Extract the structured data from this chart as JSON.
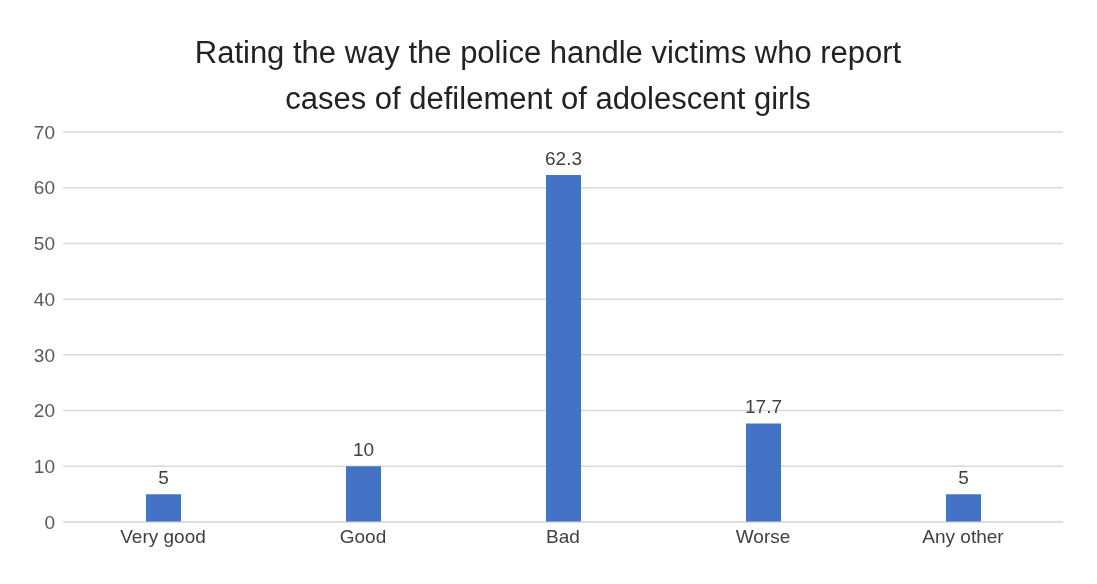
{
  "chart_data": {
    "type": "bar",
    "title": "Rating the way the police handle victims who report cases of defilement of adolescent girls",
    "categories": [
      "Very good",
      "Good",
      "Bad",
      "Worse",
      "Any other"
    ],
    "values": [
      5,
      10,
      62.3,
      17.7,
      5
    ],
    "color": "#4472c4",
    "ylim": [
      0,
      70
    ],
    "yticks": [
      0,
      10,
      20,
      30,
      40,
      50,
      60,
      70
    ],
    "grid": "y",
    "data_labels": true
  }
}
